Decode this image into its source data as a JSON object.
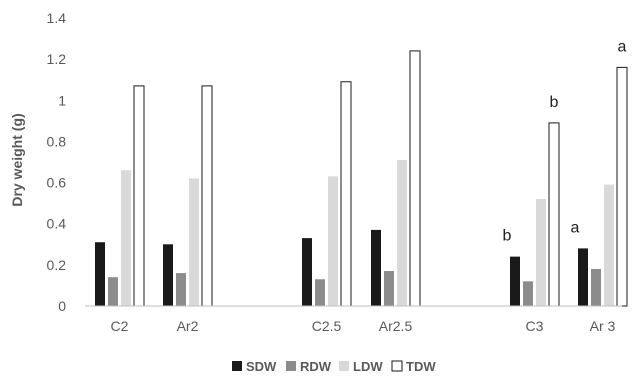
{
  "chart_data": {
    "type": "bar",
    "title": "",
    "xlabel": "",
    "ylabel": "Dry weight (g)",
    "ylim": [
      0,
      1.4
    ],
    "yticks": [
      "0",
      "0.2",
      "0.4",
      "0.6",
      "0.8",
      "1",
      "1.2",
      "1.4"
    ],
    "categories": [
      "C2",
      "Ar2",
      "C2.5",
      "Ar2.5",
      "C3",
      "Ar 3"
    ],
    "groups": [
      [
        "C2",
        "Ar2"
      ],
      [
        "C2.5",
        "Ar2.5"
      ],
      [
        "C3",
        "Ar 3"
      ]
    ],
    "series": [
      {
        "name": "SDW",
        "color": "#1a1a1a",
        "values": [
          0.31,
          0.3,
          0.33,
          0.37,
          0.24,
          0.28
        ]
      },
      {
        "name": "RDW",
        "color": "#8c8c8c",
        "values": [
          0.14,
          0.16,
          0.13,
          0.17,
          0.12,
          0.18
        ]
      },
      {
        "name": "LDW",
        "color": "#d9d9d9",
        "values": [
          0.66,
          0.62,
          0.63,
          0.71,
          0.52,
          0.59
        ]
      },
      {
        "name": "TDW",
        "color": "#ffffff",
        "values": [
          1.07,
          1.07,
          1.09,
          1.24,
          0.89,
          1.16
        ]
      }
    ],
    "annotations": [
      {
        "text": "b",
        "category": "C3",
        "series": "SDW"
      },
      {
        "text": "b",
        "category": "C3",
        "series": "TDW"
      },
      {
        "text": "a",
        "category": "Ar 3",
        "series": "SDW"
      },
      {
        "text": "a",
        "category": "Ar 3",
        "series": "TDW"
      }
    ],
    "grid": false,
    "legend": "bottom"
  }
}
